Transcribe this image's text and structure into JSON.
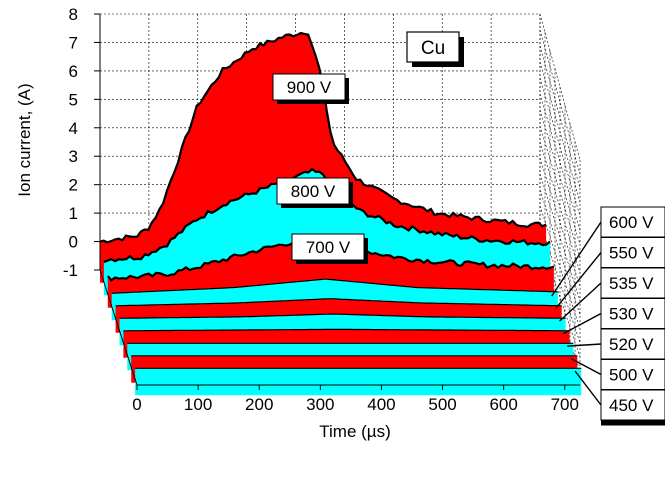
{
  "chart_data": {
    "type": "area",
    "title": "",
    "xlabel": "Time (µs)",
    "ylabel": "Ion current, (A)",
    "material_label": "Cu",
    "x_ticks": [
      0,
      100,
      200,
      300,
      400,
      500,
      600,
      700
    ],
    "y_ticks": [
      -1,
      0,
      1,
      2,
      3,
      4,
      5,
      6,
      7,
      8
    ],
    "xlim": [
      0,
      720
    ],
    "ylim": [
      -1,
      8
    ],
    "grid": true,
    "series": [
      {
        "name": "900 V",
        "color": "#ff0000",
        "x": [
          0,
          60,
          80,
          100,
          130,
          160,
          200,
          250,
          300,
          340,
          360,
          380,
          420,
          480,
          550,
          620,
          700,
          730
        ],
        "values": [
          0.0,
          0.2,
          0.5,
          1.2,
          3.0,
          4.8,
          6.0,
          6.8,
          7.2,
          7.4,
          6.0,
          3.5,
          2.2,
          1.5,
          1.0,
          0.8,
          0.6,
          0.6
        ]
      },
      {
        "name": "800 V",
        "color": "#00ffff",
        "x": [
          0,
          60,
          100,
          150,
          200,
          250,
          300,
          340,
          360,
          380,
          420,
          480,
          550,
          620,
          700,
          730
        ],
        "values": [
          -0.2,
          -0.1,
          0.3,
          1.2,
          1.8,
          2.2,
          2.6,
          2.9,
          2.8,
          2.2,
          1.5,
          1.0,
          0.7,
          0.5,
          0.4,
          0.4
        ]
      },
      {
        "name": "700 V",
        "color": "#ff0000",
        "x": [
          0,
          60,
          100,
          150,
          200,
          250,
          300,
          340,
          360,
          390,
          420,
          480,
          550,
          620,
          700,
          730
        ],
        "values": [
          -0.4,
          -0.35,
          -0.25,
          0.0,
          0.3,
          0.6,
          0.85,
          1.0,
          1.0,
          0.8,
          0.55,
          0.3,
          0.15,
          0.05,
          0.0,
          0.0
        ]
      },
      {
        "name": "600 V",
        "color": "#00ffff",
        "x": [
          0,
          200,
          350,
          500,
          730
        ],
        "values": [
          -0.5,
          -0.3,
          0.0,
          -0.3,
          -0.45
        ]
      },
      {
        "name": "550 V",
        "color": "#ff0000",
        "x": [
          0,
          200,
          350,
          500,
          730
        ],
        "values": [
          -0.5,
          -0.4,
          -0.25,
          -0.4,
          -0.5
        ]
      },
      {
        "name": "535 V",
        "color": "#00ffff",
        "x": [
          0,
          200,
          350,
          500,
          730
        ],
        "values": [
          -0.5,
          -0.45,
          -0.35,
          -0.45,
          -0.5
        ]
      },
      {
        "name": "530 V",
        "color": "#ff0000",
        "x": [
          0,
          350,
          730
        ],
        "values": [
          -0.5,
          -0.45,
          -0.5
        ]
      },
      {
        "name": "520 V",
        "color": "#00ffff",
        "x": [
          0,
          730
        ],
        "values": [
          -0.5,
          -0.5
        ]
      },
      {
        "name": "500 V",
        "color": "#ff0000",
        "x": [
          0,
          730
        ],
        "values": [
          -0.5,
          -0.5
        ]
      },
      {
        "name": "450 V",
        "color": "#00ffff",
        "x": [
          0,
          730
        ],
        "values": [
          -0.5,
          -0.5
        ]
      }
    ]
  }
}
